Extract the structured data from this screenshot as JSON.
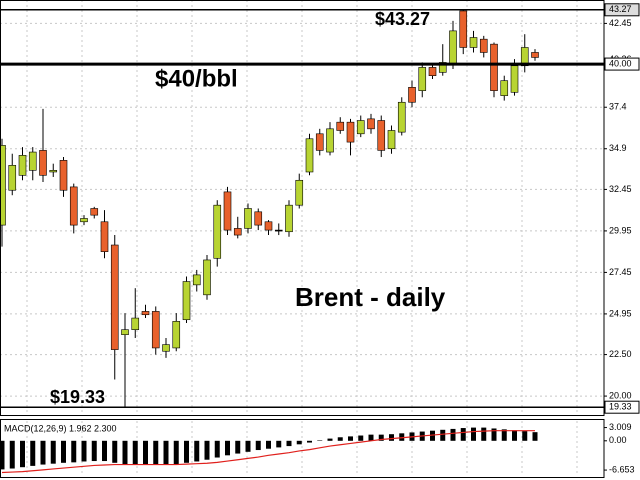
{
  "chart_data": [
    {
      "type": "candlestick",
      "annotations": [
        "$43.27",
        "$40/bbl",
        "Brent - daily",
        "$19.33"
      ],
      "open": [
        30.3,
        32.4,
        33.3,
        33.6,
        34.8,
        33.5,
        34.2,
        32.6,
        30.5,
        31.3,
        30.5,
        29.1,
        23.7,
        24.0,
        25.1,
        25.1,
        22.7,
        22.9,
        24.6,
        26.7,
        26.1,
        28.3,
        32.3,
        30.1,
        30.1,
        31.1,
        30.5,
        30.0,
        29.9,
        31.5,
        33.5,
        35.8,
        34.7,
        36.5,
        36.5,
        35.8,
        36.7,
        36.6,
        34.9,
        35.9,
        38.6,
        38.4,
        39.8,
        39.5,
        40.0,
        43.2,
        41.0,
        41.5,
        41.2,
        38.1,
        38.3,
        39.9,
        40.7
      ],
      "high": [
        35.5,
        34.6,
        35.0,
        35.0,
        37.3,
        34.0,
        34.4,
        32.8,
        30.9,
        31.4,
        31.2,
        29.7,
        25.0,
        26.5,
        25.5,
        25.4,
        23.5,
        25.0,
        27.2,
        27.6,
        28.5,
        31.8,
        32.6,
        30.8,
        31.6,
        31.3,
        30.6,
        30.4,
        31.8,
        33.4,
        35.8,
        36.1,
        36.5,
        36.8,
        36.7,
        36.9,
        37.0,
        36.9,
        36.3,
        38.0,
        39.0,
        40.1,
        40.0,
        41.2,
        42.6,
        43.27,
        42.0,
        41.7,
        41.3,
        39.3,
        40.3,
        41.8,
        40.9
      ],
      "low": [
        29.0,
        32.1,
        33.0,
        33.0,
        32.9,
        33.2,
        32.0,
        29.8,
        30.3,
        30.7,
        28.3,
        21.0,
        19.33,
        23.5,
        24.7,
        22.5,
        22.3,
        22.7,
        24.4,
        26.3,
        25.8,
        27.8,
        29.7,
        29.5,
        29.8,
        30.0,
        29.7,
        29.7,
        29.6,
        31.3,
        33.3,
        34.5,
        34.5,
        35.8,
        34.5,
        35.6,
        35.8,
        34.4,
        34.6,
        35.7,
        37.4,
        38.0,
        39.1,
        39.3,
        39.7,
        40.6,
        40.7,
        40.4,
        38.0,
        37.8,
        38.1,
        39.5,
        40.2
      ],
      "close": [
        35.1,
        33.9,
        34.5,
        34.7,
        33.3,
        33.6,
        32.4,
        30.3,
        30.7,
        30.9,
        28.7,
        22.8,
        24.0,
        24.7,
        24.9,
        22.9,
        23.1,
        24.5,
        26.9,
        27.3,
        28.2,
        31.5,
        30.0,
        29.7,
        31.3,
        30.3,
        30.0,
        30.0,
        31.5,
        33.0,
        35.5,
        34.8,
        36.1,
        36.0,
        35.3,
        36.6,
        36.1,
        34.8,
        36.0,
        37.7,
        37.7,
        39.8,
        39.3,
        40.1,
        42.0,
        41.0,
        41.6,
        40.7,
        38.4,
        39.0,
        39.9,
        41.0,
        40.4
      ],
      "up_color": "#b8d432",
      "down_color": "#e8612c",
      "ylim": [
        18.8,
        43.86
      ],
      "yticks": [
        42.45,
        37.4,
        34.9,
        32.45,
        29.95,
        27.45,
        24.95,
        {
          "value": 22.5,
          "label": "22.50"
        },
        {
          "value": 20,
          "label": "20.00"
        }
      ],
      "levels": [
        43.27,
        {
          "value": 40,
          "label": "40.00"
        },
        19.33
      ],
      "last_price": 40.26,
      "grid": true
    },
    {
      "type": "macd",
      "title": "MACD(12,26,9) 1.962 2.300",
      "values": [
        -6.5,
        -6.3,
        -6.0,
        -5.7,
        -5.4,
        -5.2,
        -5.0,
        -4.9,
        -4.7,
        -4.6,
        -4.6,
        -5.0,
        -5.3,
        -5.4,
        -5.4,
        -5.5,
        -5.5,
        -5.3,
        -5.0,
        -4.7,
        -4.3,
        -3.8,
        -3.3,
        -2.9,
        -2.5,
        -2.1,
        -1.8,
        -1.5,
        -1.2,
        -0.8,
        -0.4,
        0.1,
        0.5,
        0.8,
        1.0,
        1.2,
        1.4,
        1.4,
        1.5,
        1.7,
        1.9,
        2.1,
        2.3,
        2.5,
        2.7,
        2.9,
        3.0,
        3.0,
        2.8,
        2.6,
        2.4,
        2.2,
        1.962
      ],
      "signal": [
        -7.2,
        -7.1,
        -7.0,
        -6.8,
        -6.6,
        -6.4,
        -6.2,
        -6.0,
        -5.8,
        -5.6,
        -5.5,
        -5.4,
        -5.4,
        -5.4,
        -5.4,
        -5.4,
        -5.4,
        -5.4,
        -5.3,
        -5.2,
        -5.1,
        -4.9,
        -4.6,
        -4.3,
        -4.0,
        -3.7,
        -3.3,
        -3.0,
        -2.7,
        -2.3,
        -2.0,
        -1.6,
        -1.2,
        -0.9,
        -0.6,
        -0.3,
        0.0,
        0.3,
        0.5,
        0.7,
        0.9,
        1.1,
        1.3,
        1.5,
        1.7,
        1.9,
        2.1,
        2.2,
        2.3,
        2.3,
        2.3,
        2.3,
        2.3
      ],
      "color": "#000000",
      "signal_color": "#e0201c",
      "ylim": [
        -8,
        4.5
      ],
      "yticks": [
        3.009,
        {
          "value": 0,
          "label": "0.00"
        },
        -6.653
      ]
    }
  ]
}
